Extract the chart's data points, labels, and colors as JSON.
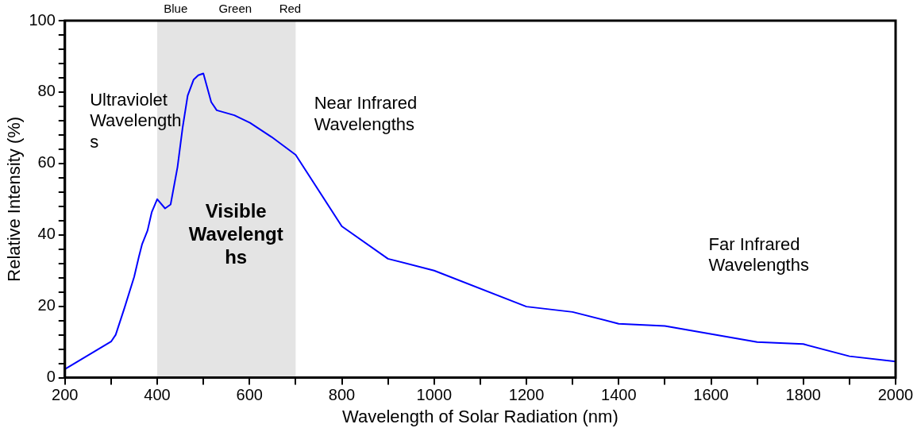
{
  "chart_data": {
    "type": "line",
    "xlabel": "Wavelength of Solar Radiation (nm)",
    "ylabel": "Relative Intensity (%)",
    "x": [
      200,
      300,
      310,
      329,
      350,
      360,
      367,
      379,
      388,
      400,
      417,
      429,
      444,
      455,
      466,
      479,
      489,
      500,
      517,
      529,
      567,
      601,
      648,
      700,
      800,
      900,
      1000,
      1200,
      1300,
      1400,
      1500,
      1700,
      1800,
      1900,
      2000
    ],
    "series": [
      {
        "color": "#0000ff",
        "values": [
          2.4,
          10.1,
          12,
          19.5,
          28.2,
          33.7,
          37.3,
          41.2,
          46.3,
          50,
          47.4,
          48.5,
          59,
          70,
          79,
          83.5,
          84.7,
          85.2,
          77.2,
          74.9,
          73.5,
          71.4,
          67.4,
          62.4,
          42.4,
          33.3,
          30,
          19.9,
          18.4,
          15.1,
          14.5,
          10,
          9.4,
          6,
          4.5
        ]
      }
    ],
    "xlim": [
      200,
      2000
    ],
    "xticks": [
      200,
      {
        "value": 300,
        "label": null
      },
      400,
      {
        "value": 500,
        "label": null
      },
      600,
      {
        "value": 700,
        "label": null
      },
      800,
      {
        "value": 900,
        "label": null
      },
      1000,
      {
        "value": 1100,
        "label": null
      },
      1200,
      {
        "value": 1300,
        "label": null
      },
      1400,
      {
        "value": 1500,
        "label": null
      },
      1600,
      {
        "value": 1700,
        "label": null
      },
      1800,
      {
        "value": 1900,
        "label": null
      },
      2000
    ],
    "ylim": [
      0,
      100
    ],
    "yticks": [
      0,
      {
        "value": 4,
        "label": null
      },
      {
        "value": 8,
        "label": null
      },
      {
        "value": 12,
        "label": null
      },
      {
        "value": 16,
        "label": null
      },
      20,
      {
        "value": 24,
        "label": null
      },
      {
        "value": 28,
        "label": null
      },
      {
        "value": 32,
        "label": null
      },
      {
        "value": 36,
        "label": null
      },
      40,
      {
        "value": 44,
        "label": null
      },
      {
        "value": 48,
        "label": null
      },
      {
        "value": 52,
        "label": null
      },
      {
        "value": 56,
        "label": null
      },
      60,
      {
        "value": 64,
        "label": null
      },
      {
        "value": 68,
        "label": null
      },
      {
        "value": 72,
        "label": null
      },
      {
        "value": 76,
        "label": null
      },
      80,
      {
        "value": 84,
        "label": null
      },
      {
        "value": 88,
        "label": null
      },
      {
        "value": 92,
        "label": null
      },
      {
        "value": 96,
        "label": null
      },
      100
    ],
    "bands": [
      {
        "axis": "x",
        "from": 400,
        "to": 700,
        "label": "Visible\nWavelengt\nhs",
        "color": "#e4e4e4"
      }
    ],
    "annotations": [
      "Ultraviolet\nWavelength\ns",
      "Near Infrared\nWavelengths",
      "Far Infrared\nWavelengths",
      {
        "text": "Blue",
        "x": 440,
        "y": 100
      },
      {
        "text": "Green",
        "x": 569,
        "y": 100
      },
      {
        "text": "Red",
        "x": 688,
        "y": 100
      }
    ],
    "grid": false,
    "legend": false,
    "marker": "none",
    "line_style": "solid"
  }
}
